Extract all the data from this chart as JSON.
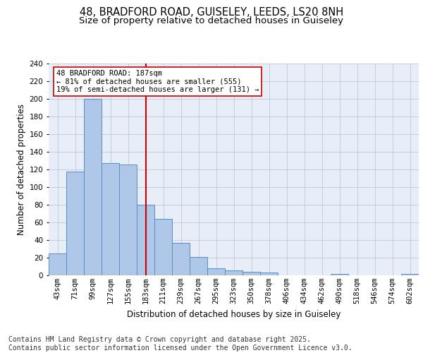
{
  "title1": "48, BRADFORD ROAD, GUISELEY, LEEDS, LS20 8NH",
  "title2": "Size of property relative to detached houses in Guiseley",
  "xlabel": "Distribution of detached houses by size in Guiseley",
  "ylabel": "Number of detached properties",
  "bar_labels": [
    "43sqm",
    "71sqm",
    "99sqm",
    "127sqm",
    "155sqm",
    "183sqm",
    "211sqm",
    "239sqm",
    "267sqm",
    "295sqm",
    "323sqm",
    "350sqm",
    "378sqm",
    "406sqm",
    "434sqm",
    "462sqm",
    "490sqm",
    "518sqm",
    "546sqm",
    "574sqm",
    "602sqm"
  ],
  "bar_values": [
    25,
    118,
    200,
    127,
    126,
    80,
    64,
    37,
    21,
    8,
    6,
    4,
    3,
    0,
    0,
    0,
    2,
    0,
    0,
    0,
    2
  ],
  "bar_color": "#aec6e8",
  "bar_edge_color": "#5a8fc2",
  "background_color": "#e8eef8",
  "vline_x_index": 5,
  "vline_color": "#cc0000",
  "annotation_text": "48 BRADFORD ROAD: 187sqm\n← 81% of detached houses are smaller (555)\n19% of semi-detached houses are larger (131) →",
  "annotation_box_color": "#ffffff",
  "annotation_box_edge": "#cc0000",
  "ylim": [
    0,
    240
  ],
  "yticks": [
    0,
    20,
    40,
    60,
    80,
    100,
    120,
    140,
    160,
    180,
    200,
    220,
    240
  ],
  "footer_text": "Contains HM Land Registry data © Crown copyright and database right 2025.\nContains public sector information licensed under the Open Government Licence v3.0.",
  "title_fontsize": 10.5,
  "subtitle_fontsize": 9.5,
  "footer_fontsize": 7,
  "axis_label_fontsize": 8.5,
  "tick_fontsize": 7.5,
  "annot_fontsize": 7.5
}
